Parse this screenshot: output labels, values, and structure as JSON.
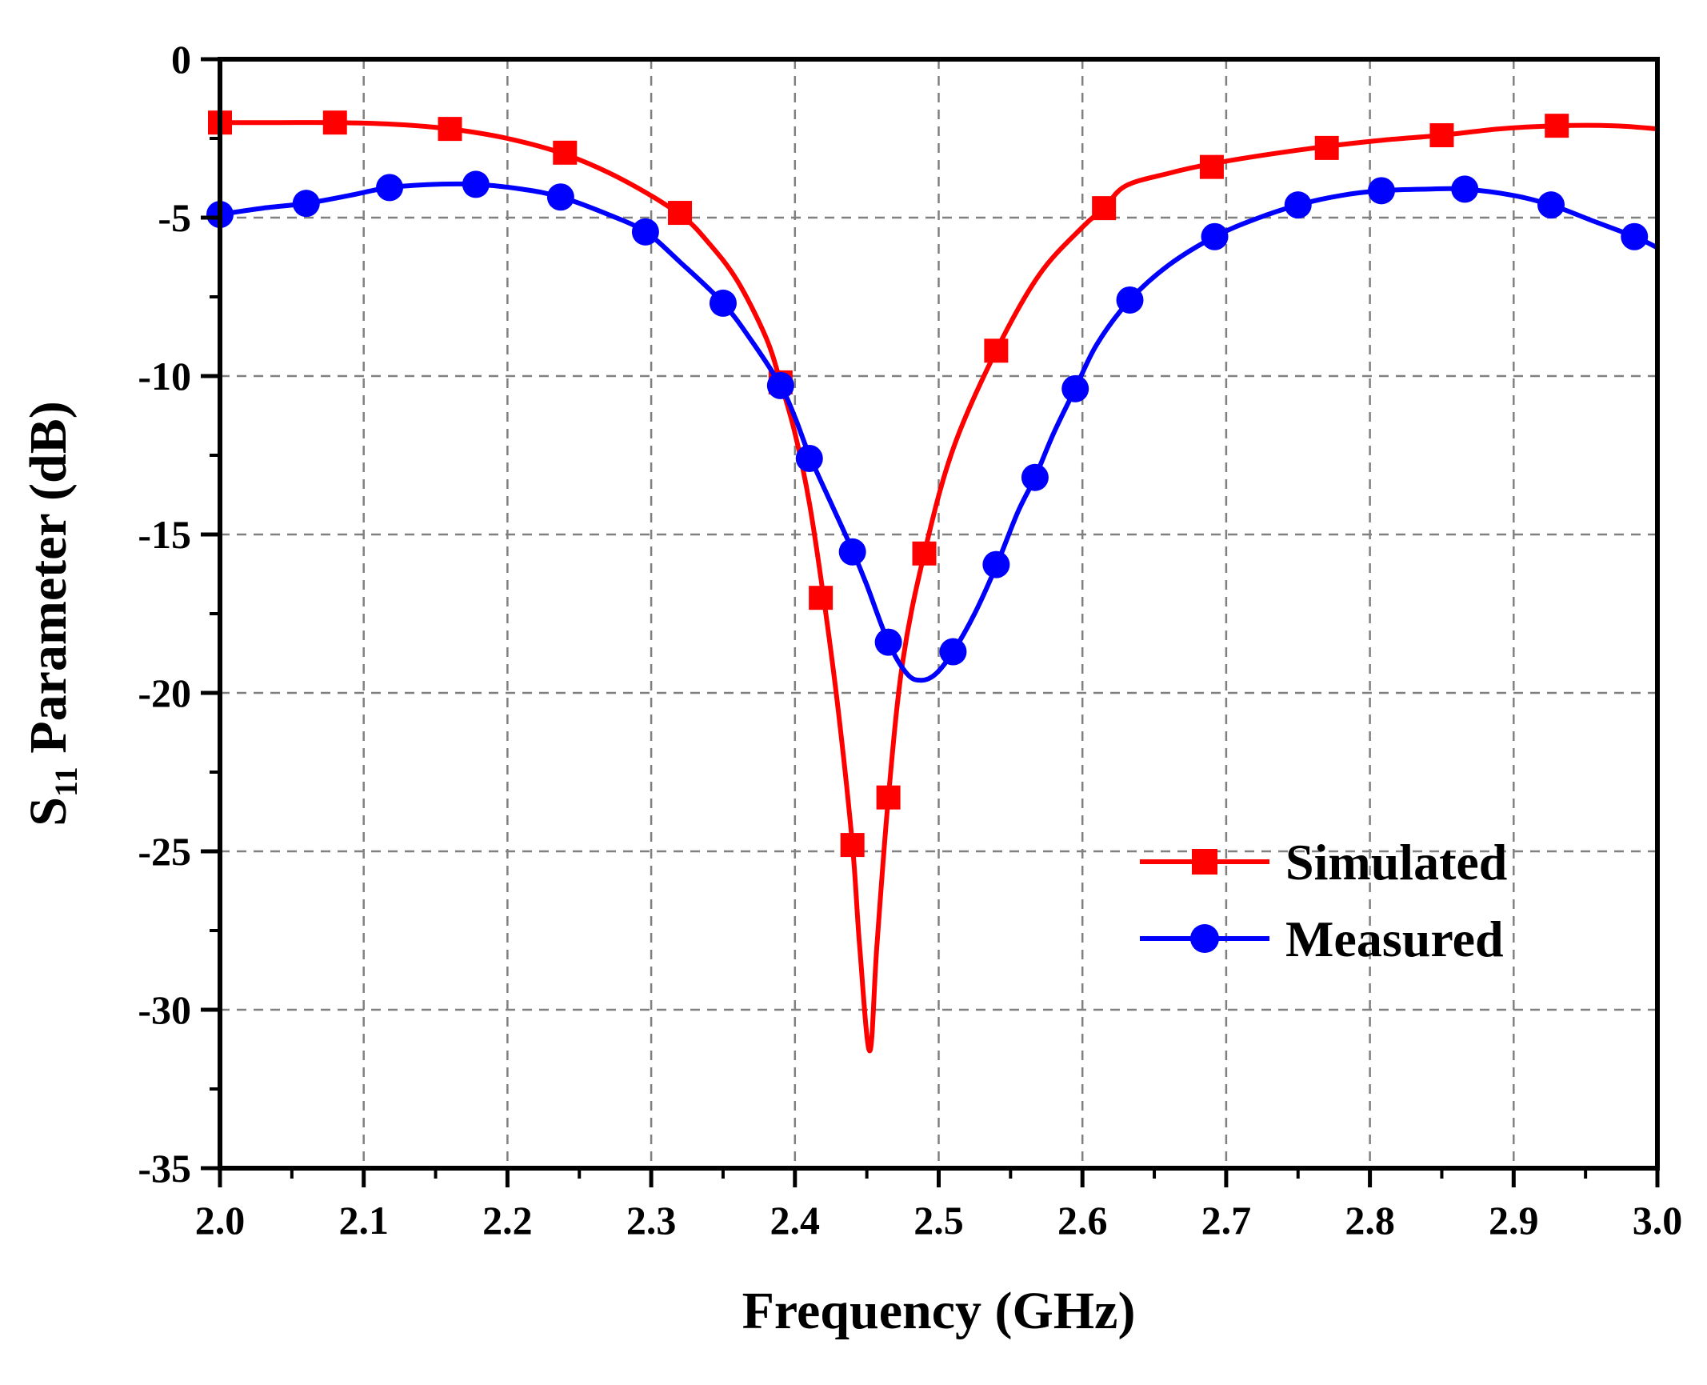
{
  "chart_data": {
    "type": "line",
    "xlabel": "Frequency (GHz)",
    "ylabel_main": "S",
    "ylabel_sub": "11",
    "ylabel_rest": " Parameter (dB)",
    "xlim": [
      2.0,
      3.0
    ],
    "ylim": [
      -35,
      0
    ],
    "x_ticks": [
      2.0,
      2.1,
      2.2,
      2.3,
      2.4,
      2.5,
      2.6,
      2.7,
      2.8,
      2.9,
      3.0
    ],
    "x_tick_labels": [
      "2.0",
      "2.1",
      "2.2",
      "2.3",
      "2.4",
      "2.5",
      "2.6",
      "2.7",
      "2.8",
      "2.9",
      "3.0"
    ],
    "y_ticks": [
      0,
      -5,
      -10,
      -15,
      -20,
      -25,
      -30,
      -35
    ],
    "y_tick_labels": [
      "0",
      "-5",
      "-10",
      "-15",
      "-20",
      "-25",
      "-30",
      "-35"
    ],
    "grid": true,
    "legend_position": "lower-right",
    "series": [
      {
        "name": "Simulated",
        "color": "#ff0000",
        "marker": "square",
        "curve": [
          [
            2.0,
            -2.0
          ],
          [
            2.04,
            -2.0
          ],
          [
            2.08,
            -2.0
          ],
          [
            2.12,
            -2.05
          ],
          [
            2.16,
            -2.2
          ],
          [
            2.2,
            -2.5
          ],
          [
            2.24,
            -3.0
          ],
          [
            2.28,
            -3.8
          ],
          [
            2.32,
            -4.9
          ],
          [
            2.34,
            -5.8
          ],
          [
            2.36,
            -7.0
          ],
          [
            2.38,
            -8.8
          ],
          [
            2.39,
            -10.2
          ],
          [
            2.4,
            -11.8
          ],
          [
            2.41,
            -14.0
          ],
          [
            2.42,
            -17.0
          ],
          [
            2.43,
            -20.5
          ],
          [
            2.44,
            -24.8
          ],
          [
            2.445,
            -28.0
          ],
          [
            2.452,
            -31.3
          ],
          [
            2.457,
            -28.0
          ],
          [
            2.465,
            -23.3
          ],
          [
            2.475,
            -19.0
          ],
          [
            2.49,
            -15.6
          ],
          [
            2.51,
            -12.3
          ],
          [
            2.54,
            -9.2
          ],
          [
            2.57,
            -6.8
          ],
          [
            2.6,
            -5.3
          ],
          [
            2.615,
            -4.7
          ],
          [
            2.63,
            -4.0
          ],
          [
            2.66,
            -3.6
          ],
          [
            2.69,
            -3.3
          ],
          [
            2.73,
            -3.0
          ],
          [
            2.77,
            -2.75
          ],
          [
            2.81,
            -2.55
          ],
          [
            2.85,
            -2.4
          ],
          [
            2.89,
            -2.2
          ],
          [
            2.93,
            -2.1
          ],
          [
            2.97,
            -2.1
          ],
          [
            3.0,
            -2.2
          ]
        ],
        "markers": [
          [
            2.0,
            -2.0
          ],
          [
            2.08,
            -2.0
          ],
          [
            2.16,
            -2.2
          ],
          [
            2.24,
            -2.95
          ],
          [
            2.32,
            -4.85
          ],
          [
            2.39,
            -10.2
          ],
          [
            2.418,
            -17.0
          ],
          [
            2.44,
            -24.8
          ],
          [
            2.465,
            -23.3
          ],
          [
            2.49,
            -15.6
          ],
          [
            2.54,
            -9.2
          ],
          [
            2.615,
            -4.7
          ],
          [
            2.69,
            -3.4
          ],
          [
            2.77,
            -2.8
          ],
          [
            2.85,
            -2.4
          ],
          [
            2.93,
            -2.1
          ]
        ]
      },
      {
        "name": "Measured",
        "color": "#0000ff",
        "marker": "circle",
        "curve": [
          [
            2.0,
            -4.9
          ],
          [
            2.03,
            -4.7
          ],
          [
            2.06,
            -4.55
          ],
          [
            2.09,
            -4.3
          ],
          [
            2.118,
            -4.05
          ],
          [
            2.15,
            -3.95
          ],
          [
            2.178,
            -3.95
          ],
          [
            2.21,
            -4.1
          ],
          [
            2.237,
            -4.35
          ],
          [
            2.27,
            -4.9
          ],
          [
            2.296,
            -5.45
          ],
          [
            2.32,
            -6.4
          ],
          [
            2.35,
            -7.7
          ],
          [
            2.37,
            -8.9
          ],
          [
            2.39,
            -10.3
          ],
          [
            2.4,
            -11.3
          ],
          [
            2.41,
            -12.5
          ],
          [
            2.425,
            -14.0
          ],
          [
            2.44,
            -15.5
          ],
          [
            2.45,
            -16.6
          ],
          [
            2.465,
            -18.4
          ],
          [
            2.478,
            -19.4
          ],
          [
            2.488,
            -19.6
          ],
          [
            2.498,
            -19.4
          ],
          [
            2.51,
            -18.7
          ],
          [
            2.525,
            -17.5
          ],
          [
            2.54,
            -16.0
          ],
          [
            2.555,
            -14.3
          ],
          [
            2.567,
            -13.2
          ],
          [
            2.58,
            -11.8
          ],
          [
            2.595,
            -10.4
          ],
          [
            2.61,
            -9.0
          ],
          [
            2.633,
            -7.6
          ],
          [
            2.66,
            -6.5
          ],
          [
            2.692,
            -5.6
          ],
          [
            2.72,
            -5.05
          ],
          [
            2.75,
            -4.6
          ],
          [
            2.78,
            -4.3
          ],
          [
            2.808,
            -4.15
          ],
          [
            2.84,
            -4.1
          ],
          [
            2.866,
            -4.1
          ],
          [
            2.9,
            -4.3
          ],
          [
            2.926,
            -4.6
          ],
          [
            2.955,
            -5.1
          ],
          [
            2.984,
            -5.6
          ],
          [
            3.0,
            -5.95
          ]
        ],
        "markers": [
          [
            2.0,
            -4.9
          ],
          [
            2.06,
            -4.55
          ],
          [
            2.118,
            -4.05
          ],
          [
            2.178,
            -3.95
          ],
          [
            2.237,
            -4.35
          ],
          [
            2.296,
            -5.45
          ],
          [
            2.35,
            -7.7
          ],
          [
            2.39,
            -10.3
          ],
          [
            2.41,
            -12.6
          ],
          [
            2.44,
            -15.55
          ],
          [
            2.465,
            -18.4
          ],
          [
            2.51,
            -18.7
          ],
          [
            2.54,
            -15.95
          ],
          [
            2.567,
            -13.2
          ],
          [
            2.595,
            -10.4
          ],
          [
            2.633,
            -7.6
          ],
          [
            2.692,
            -5.6
          ],
          [
            2.75,
            -4.6
          ],
          [
            2.808,
            -4.15
          ],
          [
            2.866,
            -4.1
          ],
          [
            2.926,
            -4.6
          ],
          [
            2.984,
            -5.6
          ]
        ]
      }
    ]
  }
}
